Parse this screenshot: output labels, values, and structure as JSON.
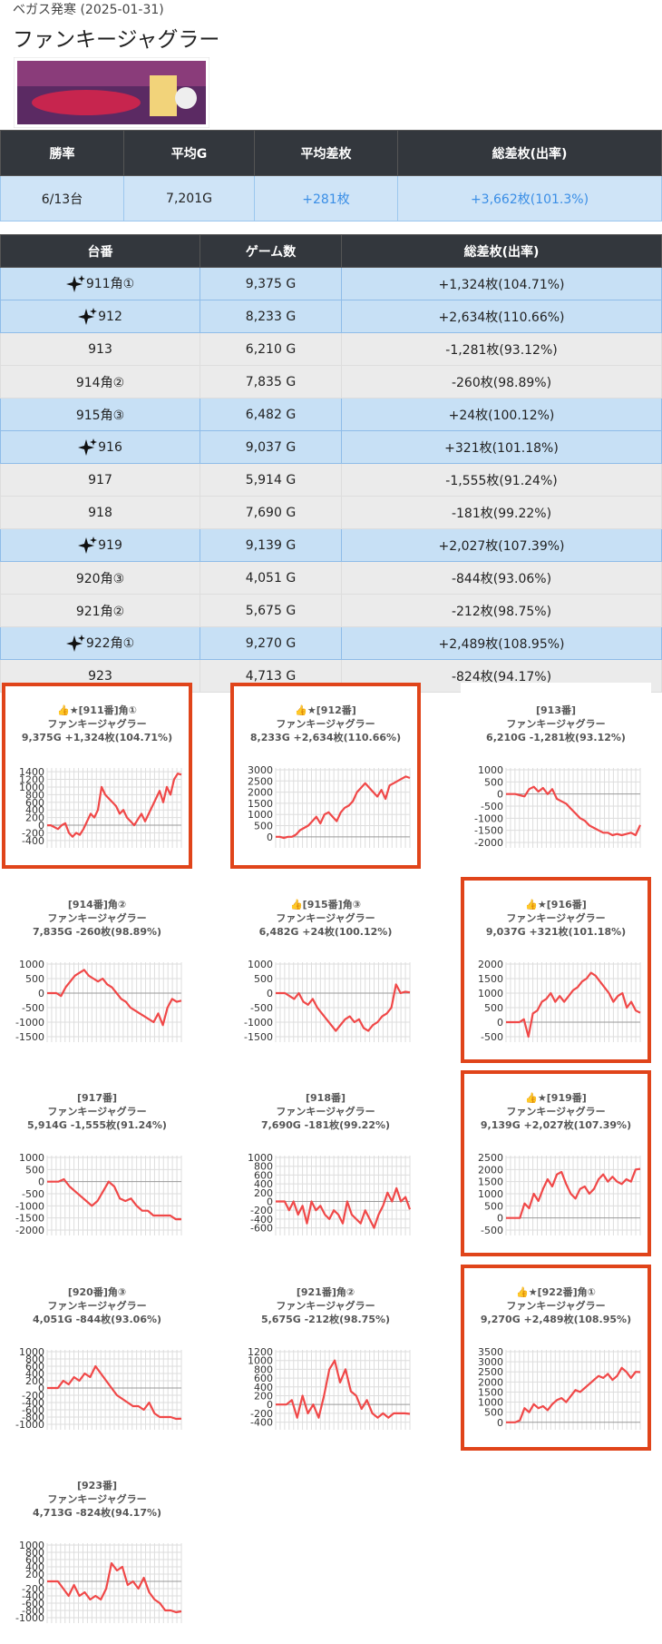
{
  "header": {
    "store": "ベガス発寒 (2025-01-31)",
    "title": "ファンキージャグラー"
  },
  "summary": {
    "headers": [
      "勝率",
      "平均G",
      "平均差枚",
      "総差枚(出率)"
    ],
    "values": [
      "6/13台",
      "7,201G",
      "+281枚",
      "+3,662枚(101.3%)"
    ]
  },
  "table": {
    "headers": [
      "台番",
      "ゲーム数",
      "総差枚(出率)"
    ],
    "rows": [
      [
        "911角①",
        "9,375 G",
        "+1,324枚(104.71%)"
      ],
      [
        "912",
        "8,233 G",
        "+2,634枚(110.66%)"
      ],
      [
        "913",
        "6,210 G",
        "-1,281枚(93.12%)"
      ],
      [
        "914角②",
        "7,835 G",
        "-260枚(98.89%)"
      ],
      [
        "915角③",
        "6,482 G",
        "+24枚(100.12%)"
      ],
      [
        "916",
        "9,037 G",
        "+321枚(101.18%)"
      ],
      [
        "917",
        "5,914 G",
        "-1,555枚(91.24%)"
      ],
      [
        "918",
        "7,690 G",
        "-181枚(99.22%)"
      ],
      [
        "919",
        "9,139 G",
        "+2,027枚(107.39%)"
      ],
      [
        "920角③",
        "4,051 G",
        "-844枚(93.06%)"
      ],
      [
        "921角②",
        "5,675 G",
        "-212枚(98.75%)"
      ],
      [
        "922角①",
        "9,270 G",
        "+2,489枚(108.95%)"
      ],
      [
        "923",
        "4,713 G",
        "-824枚(94.17%)"
      ]
    ]
  },
  "chart_data": [
    {
      "type": "line",
      "title": "👍★[911番]角①",
      "subtitle": "ファンキージャグラー",
      "caption": "9,375G +1,324枚(104.71%)",
      "color": "#f04848",
      "border_color": "#e0441a",
      "ylim": [
        -450,
        1450
      ],
      "yticks": [
        1400,
        1200,
        1000,
        800,
        600,
        400,
        200,
        0,
        -200,
        -400
      ],
      "values": [
        0,
        0,
        -50,
        -100,
        0,
        50,
        -200,
        -300,
        -200,
        -250,
        -100,
        100,
        300,
        200,
        400,
        1000,
        800,
        700,
        600,
        500,
        300,
        400,
        200,
        100,
        0,
        150,
        300,
        100,
        300,
        500,
        700,
        900,
        600,
        1000,
        800,
        1200,
        1350,
        1324
      ]
    },
    {
      "type": "line",
      "title": "👍★[912番]",
      "subtitle": "ファンキージャグラー",
      "caption": "8,233G +2,634枚(110.66%)",
      "color": "#f04848",
      "border_color": "#e0441a",
      "ylim": [
        -250,
        3000
      ],
      "yticks": [
        3000,
        2500,
        2000,
        1500,
        1000,
        500,
        0
      ],
      "values": [
        0,
        0,
        -50,
        0,
        0,
        100,
        300,
        400,
        500,
        700,
        900,
        600,
        1000,
        1100,
        900,
        700,
        1100,
        1300,
        1400,
        1600,
        2000,
        2200,
        2400,
        2200,
        2000,
        1800,
        2100,
        1700,
        2300,
        2400,
        2500,
        2600,
        2700,
        2634
      ]
    },
    {
      "type": "line",
      "title": "[913番]",
      "subtitle": "ファンキージャグラー",
      "caption": "6,210G -1,281枚(93.12%)",
      "color": "#f04848",
      "ylim": [
        -2000,
        1000
      ],
      "yticks": [
        1000,
        500,
        0,
        -500,
        -1000,
        -1500,
        -2000
      ],
      "values": [
        0,
        0,
        0,
        -50,
        -100,
        200,
        300,
        100,
        250,
        0,
        200,
        -200,
        -300,
        -400,
        -600,
        -800,
        -1000,
        -1100,
        -1300,
        -1400,
        -1500,
        -1600,
        -1600,
        -1700,
        -1650,
        -1700,
        -1650,
        -1600,
        -1700,
        -1281
      ]
    },
    {
      "type": "line",
      "title": "[914番]角②",
      "subtitle": "ファンキージャグラー",
      "caption": "7,835G -260枚(98.89%)",
      "color": "#f04848",
      "ylim": [
        -1500,
        1000
      ],
      "yticks": [
        1000,
        500,
        0,
        -500,
        -1000,
        -1500
      ],
      "values": [
        0,
        0,
        0,
        -100,
        200,
        400,
        600,
        700,
        800,
        600,
        500,
        400,
        500,
        300,
        200,
        0,
        -200,
        -300,
        -500,
        -600,
        -700,
        -800,
        -900,
        -1000,
        -700,
        -1100,
        -500,
        -200,
        -300,
        -260
      ]
    },
    {
      "type": "line",
      "title": "👍[915番]角③",
      "subtitle": "ファンキージャグラー",
      "caption": "6,482G +24枚(100.12%)",
      "color": "#f04848",
      "ylim": [
        -1500,
        1000
      ],
      "yticks": [
        1000,
        500,
        0,
        -500,
        -1000,
        -1500
      ],
      "values": [
        0,
        0,
        0,
        -100,
        -200,
        0,
        -300,
        -400,
        -200,
        -500,
        -700,
        -900,
        -1100,
        -1300,
        -1100,
        -900,
        -800,
        -1000,
        -900,
        -1200,
        -1300,
        -1100,
        -1000,
        -800,
        -700,
        -500,
        300,
        0,
        50,
        24
      ]
    },
    {
      "type": "line",
      "title": "👍★[916番]",
      "subtitle": "ファンキージャグラー",
      "caption": "9,037G +321枚(101.18%)",
      "color": "#f04848",
      "border_color": "#e0441a",
      "ylim": [
        -500,
        2000
      ],
      "yticks": [
        2000,
        1500,
        1000,
        500,
        0,
        -500
      ],
      "values": [
        0,
        0,
        0,
        0,
        100,
        -500,
        300,
        400,
        700,
        800,
        1000,
        700,
        900,
        700,
        900,
        1100,
        1200,
        1400,
        1500,
        1700,
        1600,
        1400,
        1200,
        1000,
        700,
        900,
        1000,
        500,
        700,
        400,
        321
      ]
    },
    {
      "type": "line",
      "title": "[917番]",
      "subtitle": "ファンキージャグラー",
      "caption": "5,914G -1,555枚(91.24%)",
      "color": "#f04848",
      "ylim": [
        -2000,
        1000
      ],
      "yticks": [
        1000,
        500,
        0,
        -500,
        -1000,
        -1500,
        -2000
      ],
      "values": [
        0,
        0,
        0,
        100,
        -200,
        -400,
        -600,
        -800,
        -1000,
        -800,
        -400,
        0,
        -200,
        -700,
        -800,
        -700,
        -1000,
        -1200,
        -1200,
        -1400,
        -1400,
        -1400,
        -1400,
        -1555,
        -1555
      ]
    },
    {
      "type": "line",
      "title": "[918番]",
      "subtitle": "ファンキージャグラー",
      "caption": "7,690G -181枚(99.22%)",
      "color": "#f04848",
      "ylim": [
        -650,
        1000
      ],
      "yticks": [
        1000,
        800,
        600,
        400,
        200,
        0,
        -200,
        -400,
        -600
      ],
      "values": [
        0,
        0,
        0,
        -200,
        0,
        -300,
        -100,
        -500,
        0,
        -200,
        -100,
        -300,
        -400,
        -200,
        -300,
        -500,
        0,
        -300,
        -400,
        -500,
        -200,
        -400,
        -600,
        -300,
        -100,
        200,
        0,
        300,
        0,
        100,
        -181
      ]
    },
    {
      "type": "line",
      "title": "👍★[919番]",
      "subtitle": "ファンキージャグラー",
      "caption": "9,139G +2,027枚(107.39%)",
      "color": "#f04848",
      "border_color": "#e0441a",
      "ylim": [
        -500,
        2500
      ],
      "yticks": [
        2500,
        2000,
        1500,
        1000,
        500,
        0,
        -500
      ],
      "values": [
        0,
        0,
        0,
        0,
        600,
        400,
        1000,
        700,
        1200,
        1600,
        1300,
        1800,
        1900,
        1400,
        1000,
        800,
        1200,
        1300,
        1000,
        1200,
        1600,
        1800,
        1500,
        1700,
        1500,
        1400,
        1600,
        1500,
        2000,
        2027
      ]
    },
    {
      "type": "line",
      "title": "[920番]角③",
      "subtitle": "ファンキージャグラー",
      "caption": "4,051G -844枚(93.06%)",
      "color": "#f04848",
      "ylim": [
        -1000,
        1000
      ],
      "yticks": [
        1000,
        800,
        600,
        400,
        200,
        0,
        -200,
        -400,
        -600,
        -800,
        -1000
      ],
      "values": [
        0,
        0,
        0,
        200,
        100,
        300,
        200,
        400,
        300,
        600,
        400,
        200,
        0,
        -200,
        -300,
        -400,
        -500,
        -500,
        -600,
        -400,
        -700,
        -800,
        -800,
        -800,
        -850,
        -844
      ]
    },
    {
      "type": "line",
      "title": "[921番]角②",
      "subtitle": "ファンキージャグラー",
      "caption": "5,675G -212枚(98.75%)",
      "color": "#f04848",
      "ylim": [
        -450,
        1200
      ],
      "yticks": [
        1200,
        1000,
        800,
        600,
        400,
        200,
        0,
        -200,
        -400
      ],
      "values": [
        0,
        0,
        0,
        100,
        -300,
        200,
        -200,
        0,
        -300,
        200,
        800,
        1000,
        500,
        800,
        300,
        200,
        -100,
        100,
        -200,
        -300,
        -200,
        -300,
        -200,
        -200,
        -200,
        -212
      ]
    },
    {
      "type": "line",
      "title": "👍★[922番]角①",
      "subtitle": "ファンキージャグラー",
      "caption": "9,270G +2,489枚(108.95%)",
      "color": "#f04848",
      "border_color": "#e0441a",
      "ylim": [
        -100,
        3500
      ],
      "yticks": [
        3500,
        3000,
        2500,
        2000,
        1500,
        1000,
        500,
        0
      ],
      "values": [
        0,
        0,
        0,
        100,
        700,
        500,
        900,
        700,
        800,
        600,
        900,
        1100,
        1200,
        1000,
        1300,
        1600,
        1500,
        1700,
        1900,
        2100,
        2300,
        2200,
        2400,
        2100,
        2300,
        2700,
        2500,
        2200,
        2500,
        2489
      ]
    },
    {
      "type": "line",
      "title": "[923番]",
      "subtitle": "ファンキージャグラー",
      "caption": "4,713G -824枚(94.17%)",
      "color": "#f04848",
      "ylim": [
        -1000,
        1000
      ],
      "yticks": [
        1000,
        800,
        600,
        400,
        200,
        0,
        -200,
        -400,
        -600,
        -800,
        -1000
      ],
      "values": [
        0,
        0,
        0,
        -200,
        -400,
        -100,
        -400,
        -300,
        -500,
        -400,
        -500,
        -200,
        500,
        300,
        400,
        -100,
        0,
        -200,
        100,
        -300,
        -500,
        -600,
        -800,
        -800,
        -850,
        -824
      ]
    }
  ]
}
